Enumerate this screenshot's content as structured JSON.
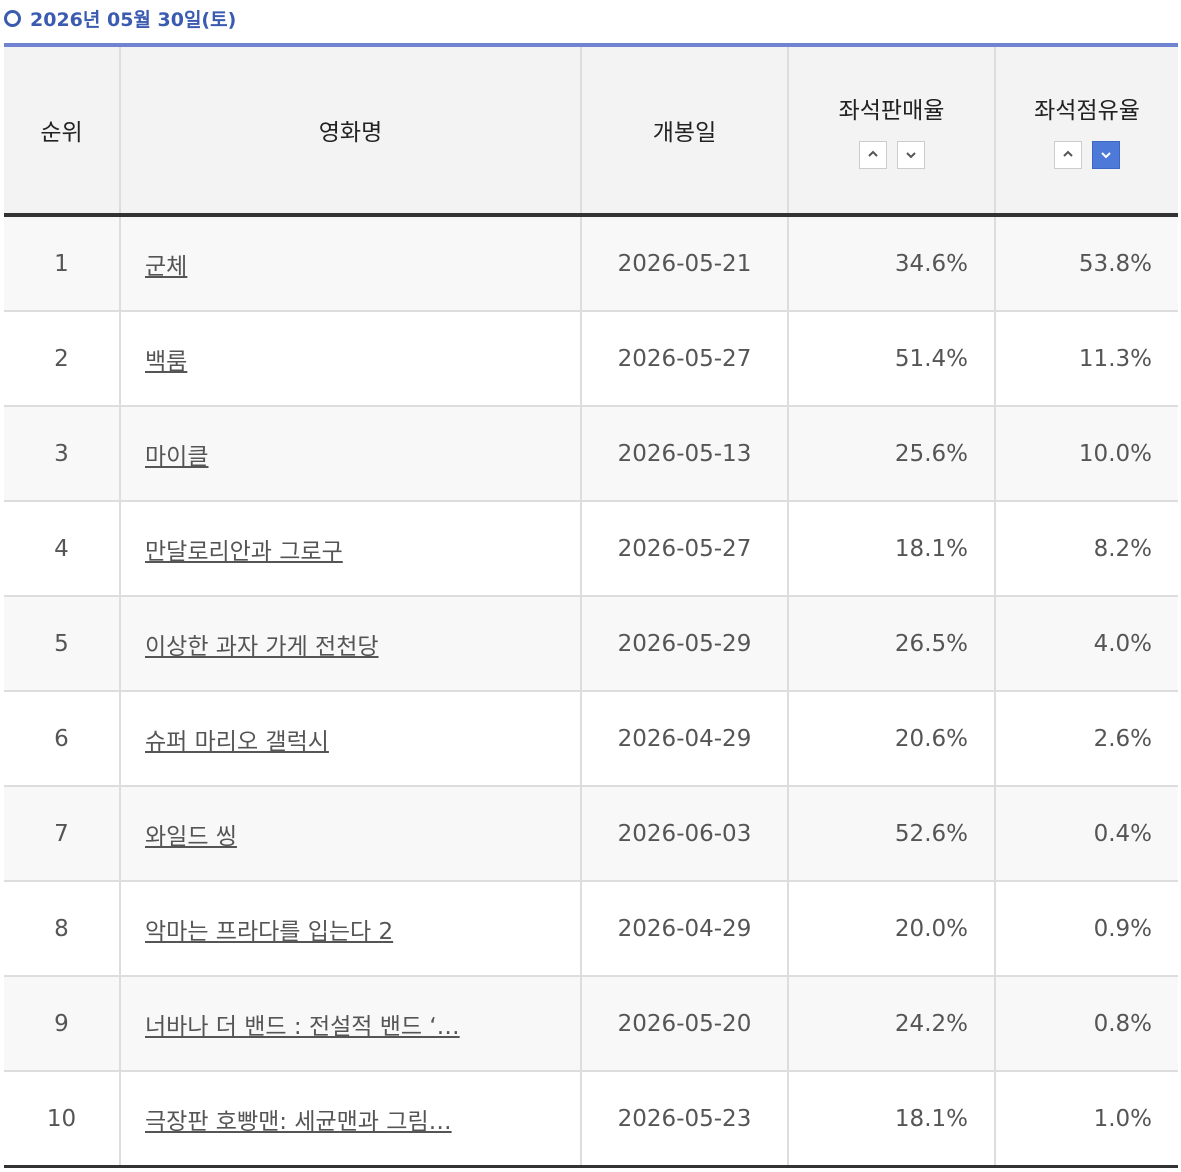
{
  "header": {
    "title": "2026년 05월 30일(토)"
  },
  "table": {
    "columns": [
      "순위",
      "영화명",
      "개봉일",
      "좌석판매율",
      "좌석점유율"
    ],
    "rows": [
      [
        "1",
        "군체",
        "2026-05-21",
        "34.6%",
        "53.8%"
      ],
      [
        "2",
        "백룸",
        "2026-05-27",
        "51.4%",
        "11.3%"
      ],
      [
        "3",
        "마이클",
        "2026-05-13",
        "25.6%",
        "10.0%"
      ],
      [
        "4",
        "만달로리안과 그로구",
        "2026-05-27",
        "18.1%",
        "8.2%"
      ],
      [
        "5",
        "이상한 과자 가게 전천당",
        "2026-05-29",
        "26.5%",
        "4.0%"
      ],
      [
        "6",
        "슈퍼 마리오 갤럭시",
        "2026-04-29",
        "20.6%",
        "2.6%"
      ],
      [
        "7",
        "와일드 씽",
        "2026-06-03",
        "52.6%",
        "0.4%"
      ],
      [
        "8",
        "악마는 프라다를 입는다 2",
        "2026-04-29",
        "20.0%",
        "0.9%"
      ],
      [
        "9",
        "너바나 더 밴드 : 전설적 밴드 ‘…",
        "2026-05-20",
        "24.2%",
        "0.8%"
      ],
      [
        "10",
        "극장판 호빵맨: 세균맨과 그림…",
        "2026-05-23",
        "18.1%",
        "1.0%"
      ]
    ]
  }
}
